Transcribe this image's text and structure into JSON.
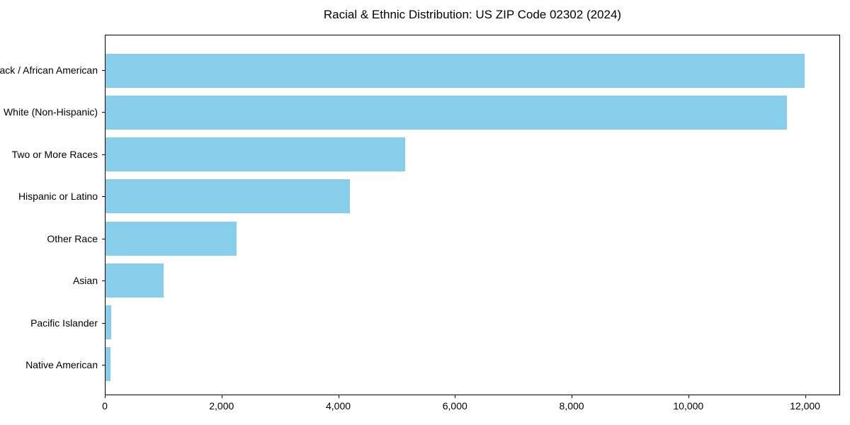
{
  "chart_data": {
    "type": "bar",
    "orientation": "horizontal",
    "title": "Racial & Ethnic Distribution: US ZIP Code 02302 (2024)",
    "categories": [
      "Black / African American",
      "White (Non-Hispanic)",
      "Two or More Races",
      "Hispanic or Latino",
      "Other Race",
      "Asian",
      "Pacific Islander",
      "Native American"
    ],
    "values": [
      12000,
      11700,
      5150,
      4200,
      2250,
      1000,
      100,
      80
    ],
    "xlabel": "",
    "ylabel": "",
    "xlim": [
      0,
      12600
    ],
    "x_ticks": [
      {
        "value": 0,
        "label": "0"
      },
      {
        "value": 2000,
        "label": "2,000"
      },
      {
        "value": 4000,
        "label": "4,000"
      },
      {
        "value": 6000,
        "label": "6,000"
      },
      {
        "value": 8000,
        "label": "8,000"
      },
      {
        "value": 10000,
        "label": "10,000"
      },
      {
        "value": 12000,
        "label": "12,000"
      }
    ],
    "grid": false,
    "legend": null,
    "bar_color": "#87CEEB",
    "axis_color": "#000000",
    "text_color": "#000000",
    "background_color": "#ffffff"
  }
}
